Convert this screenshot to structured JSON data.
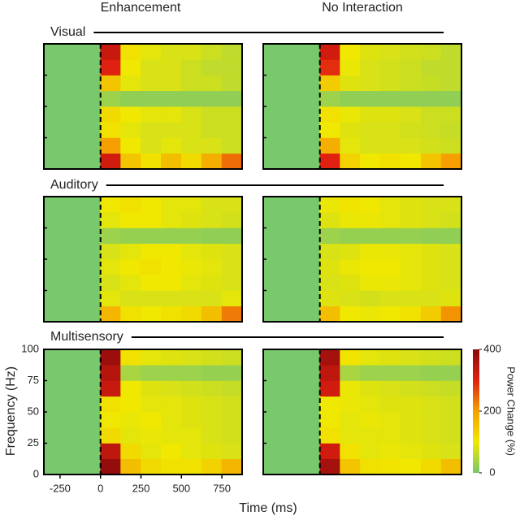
{
  "chart_data": {
    "type": "heatmap-grid",
    "columns": [
      "Enhancement",
      "No Interaction"
    ],
    "rows": [
      "Visual",
      "Auditory",
      "Multisensory"
    ],
    "xlabel": "Time (ms)",
    "ylabel": "Frequency (Hz)",
    "xlim": [
      -350,
      875
    ],
    "xticks": [
      -250,
      0,
      250,
      500,
      750
    ],
    "ylim": [
      0,
      100
    ],
    "yticks": [
      0,
      25,
      50,
      75,
      100
    ],
    "x_edges": [
      -350,
      0,
      125,
      250,
      375,
      500,
      625,
      750,
      875
    ],
    "y_edges": [
      0,
      12.5,
      25,
      37.5,
      50,
      62.5,
      75,
      87.5,
      100
    ],
    "colorbar": {
      "label": "Power Change (%)",
      "lim": [
        0,
        400
      ],
      "ticks": [
        0,
        200,
        400
      ],
      "colors": [
        "#78c86c",
        "#f0e800",
        "#f5a000",
        "#e02010",
        "#8b0a0a"
      ]
    },
    "panels": [
      {
        "z": [
          [
            0,
            320,
            150,
            110,
            160,
            120,
            180,
            240
          ],
          [
            0,
            200,
            100,
            80,
            90,
            80,
            80,
            70
          ],
          [
            0,
            110,
            90,
            80,
            80,
            80,
            70,
            70
          ],
          [
            0,
            120,
            100,
            90,
            90,
            80,
            70,
            70
          ],
          [
            0,
            30,
            20,
            20,
            20,
            20,
            20,
            20
          ],
          [
            0,
            150,
            90,
            80,
            80,
            70,
            70,
            60
          ],
          [
            0,
            300,
            100,
            80,
            80,
            70,
            60,
            60
          ],
          [
            0,
            330,
            110,
            90,
            80,
            80,
            70,
            60
          ]
        ]
      },
      {
        "z": [
          [
            0,
            300,
            130,
            100,
            110,
            100,
            150,
            200
          ],
          [
            0,
            180,
            90,
            80,
            80,
            80,
            75,
            70
          ],
          [
            0,
            100,
            85,
            80,
            80,
            75,
            70,
            65
          ],
          [
            0,
            110,
            95,
            85,
            85,
            80,
            70,
            70
          ],
          [
            0,
            30,
            20,
            20,
            20,
            20,
            20,
            20
          ],
          [
            0,
            140,
            85,
            80,
            75,
            70,
            65,
            60
          ],
          [
            0,
            290,
            95,
            80,
            75,
            70,
            60,
            60
          ],
          [
            0,
            320,
            100,
            85,
            80,
            75,
            70,
            60
          ]
        ]
      },
      {
        "z": [
          [
            0,
            170,
            110,
            100,
            110,
            120,
            160,
            230
          ],
          [
            0,
            90,
            80,
            80,
            80,
            80,
            80,
            90
          ],
          [
            0,
            80,
            90,
            100,
            100,
            90,
            85,
            80
          ],
          [
            0,
            90,
            100,
            110,
            100,
            95,
            90,
            80
          ],
          [
            0,
            80,
            90,
            100,
            100,
            90,
            85,
            80
          ],
          [
            0,
            30,
            25,
            25,
            25,
            25,
            20,
            20
          ],
          [
            0,
            90,
            100,
            100,
            90,
            85,
            80,
            75
          ],
          [
            0,
            100,
            110,
            100,
            90,
            90,
            80,
            80
          ]
        ]
      },
      {
        "z": [
          [
            0,
            160,
            100,
            95,
            100,
            110,
            140,
            210
          ],
          [
            0,
            85,
            80,
            75,
            80,
            80,
            80,
            85
          ],
          [
            0,
            80,
            85,
            95,
            95,
            90,
            85,
            80
          ],
          [
            0,
            85,
            95,
            100,
            100,
            90,
            85,
            80
          ],
          [
            0,
            80,
            85,
            95,
            95,
            90,
            85,
            80
          ],
          [
            0,
            30,
            25,
            25,
            25,
            25,
            20,
            20
          ],
          [
            0,
            85,
            95,
            95,
            90,
            85,
            80,
            75
          ],
          [
            0,
            95,
            105,
            100,
            90,
            85,
            80,
            80
          ]
        ]
      },
      {
        "z": [
          [
            0,
            390,
            160,
            120,
            110,
            110,
            130,
            170
          ],
          [
            0,
            340,
            120,
            90,
            100,
            90,
            85,
            80
          ],
          [
            0,
            120,
            90,
            95,
            90,
            90,
            80,
            75
          ],
          [
            0,
            100,
            95,
            100,
            90,
            85,
            80,
            75
          ],
          [
            0,
            110,
            100,
            90,
            90,
            85,
            80,
            75
          ],
          [
            0,
            330,
            100,
            85,
            80,
            75,
            70,
            65
          ],
          [
            0,
            350,
            40,
            30,
            30,
            30,
            25,
            25
          ],
          [
            0,
            380,
            110,
            90,
            85,
            80,
            75,
            70
          ]
        ]
      },
      {
        "z": [
          [
            0,
            370,
            150,
            110,
            105,
            100,
            120,
            160
          ],
          [
            0,
            320,
            110,
            90,
            95,
            90,
            85,
            80
          ],
          [
            0,
            110,
            90,
            90,
            90,
            85,
            80,
            75
          ],
          [
            0,
            100,
            90,
            95,
            90,
            85,
            80,
            75
          ],
          [
            0,
            100,
            95,
            90,
            85,
            85,
            80,
            75
          ],
          [
            0,
            320,
            95,
            85,
            80,
            75,
            70,
            65
          ],
          [
            0,
            340,
            40,
            30,
            30,
            30,
            25,
            25
          ],
          [
            0,
            370,
            105,
            90,
            85,
            80,
            75,
            70
          ]
        ]
      }
    ]
  }
}
